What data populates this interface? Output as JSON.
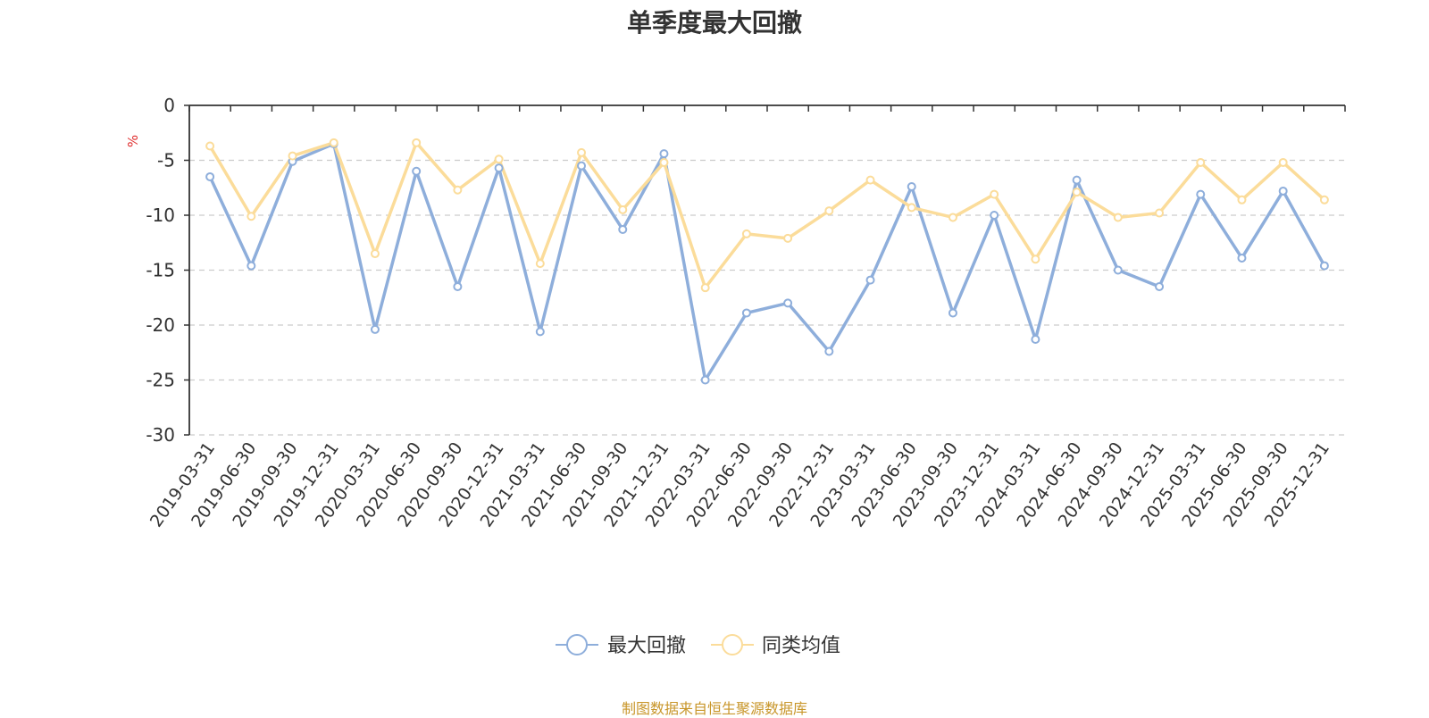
{
  "chart_data": {
    "type": "line",
    "title": "单季度最大回撤",
    "ylabel": "%",
    "xlabel": "",
    "ylim": [
      -30,
      0
    ],
    "yticks": [
      0,
      -5,
      -10,
      -15,
      -20,
      -25,
      -30
    ],
    "grid": true,
    "legend_position": "bottom-center",
    "categories": [
      "2019-03-31",
      "2019-06-30",
      "2019-09-30",
      "2019-12-31",
      "2020-03-31",
      "2020-06-30",
      "2020-09-30",
      "2020-12-31",
      "2021-03-31",
      "2021-06-30",
      "2021-09-30",
      "2021-12-31",
      "2022-03-31",
      "2022-06-30",
      "2022-09-30",
      "2022-12-31",
      "2023-03-31",
      "2023-06-30",
      "2023-09-30",
      "2023-12-31",
      "2024-03-31",
      "2024-06-30",
      "2024-09-30",
      "2024-12-31",
      "2025-03-31",
      "2025-06-30",
      "2025-09-30",
      "2025-12-31"
    ],
    "series": [
      {
        "name": "最大回撤",
        "color": "#8eaedb",
        "values": [
          -6.5,
          -14.6,
          -5.1,
          -3.5,
          -20.4,
          -6.0,
          -16.5,
          -5.7,
          -20.6,
          -5.5,
          -11.3,
          -4.4,
          -25.0,
          -18.9,
          -18.0,
          -22.4,
          -15.9,
          -7.4,
          -18.9,
          -10.0,
          -21.3,
          -6.8,
          -15.0,
          -16.5,
          -8.1,
          -13.9,
          -7.8,
          -14.6
        ]
      },
      {
        "name": "同类均值",
        "color": "#fbdc9a",
        "values": [
          -3.7,
          -10.1,
          -4.6,
          -3.4,
          -13.5,
          -3.4,
          -7.7,
          -4.9,
          -14.4,
          -4.3,
          -9.5,
          -5.2,
          -16.6,
          -11.7,
          -12.1,
          -9.6,
          -6.8,
          -9.3,
          -10.2,
          -8.1,
          -14.0,
          -7.9,
          -10.2,
          -9.8,
          -5.2,
          -8.6,
          -5.2,
          -8.6
        ]
      }
    ]
  },
  "source_note": "制图数据来自恒生聚源数据库"
}
